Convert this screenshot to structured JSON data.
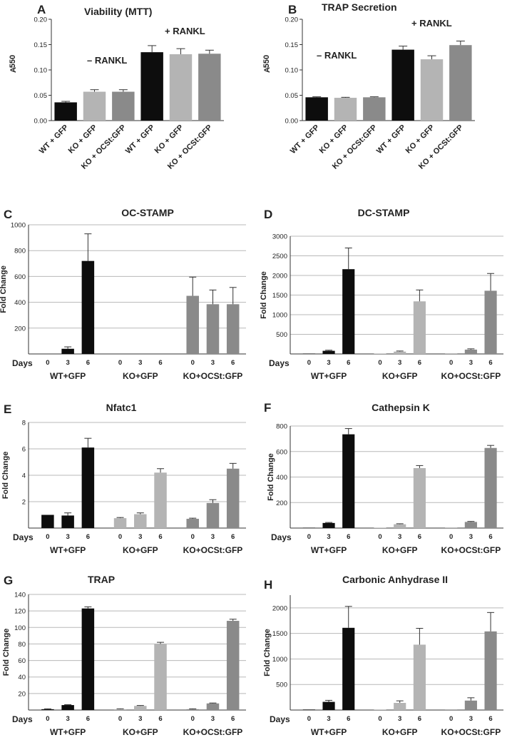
{
  "colors": {
    "wt": "#0d0d0d",
    "ko": "#b4b4b4",
    "ocst": "#8a8a8a"
  },
  "chart_data": [
    {
      "type": "bar",
      "panel": "A",
      "title": "Viability (MTT)",
      "ylabel_main": "A",
      "ylabel_sub": "550",
      "ylim": [
        0,
        0.2
      ],
      "yticks": [
        "0.00",
        "0.05",
        "0.10",
        "0.15",
        "0.20"
      ],
      "annotations": [
        "– RANKL",
        "+ RANKL"
      ],
      "categories": [
        "WT + GFP",
        "KO + GFP",
        "KO + OCSt:GFP",
        "WT + GFP",
        "KO + GFP",
        "KO + OCSt:GFP"
      ],
      "values": [
        0.036,
        0.057,
        0.057,
        0.135,
        0.131,
        0.132
      ],
      "errors": [
        0.002,
        0.004,
        0.004,
        0.013,
        0.011,
        0.007
      ]
    },
    {
      "type": "bar",
      "panel": "B",
      "title": "TRAP Secretion",
      "ylabel_main": "A",
      "ylabel_sub": "550",
      "ylim": [
        0,
        0.2
      ],
      "yticks": [
        "0.00",
        "0.05",
        "0.10",
        "0.15",
        "0.20"
      ],
      "annotations": [
        "– RANKL",
        "+ RANKL"
      ],
      "categories": [
        "WT + GFP",
        "KO + GFP",
        "KO + OCSt:GFP",
        "WT + GFP",
        "KO + GFP",
        "KO + OCSt:GFP"
      ],
      "values": [
        0.046,
        0.045,
        0.046,
        0.14,
        0.121,
        0.149
      ],
      "errors": [
        0.001,
        0.001,
        0.001,
        0.007,
        0.007,
        0.008
      ]
    },
    {
      "type": "bar",
      "panel": "C",
      "title": "OC-STAMP",
      "ylabel": "Fold Change",
      "ylim": [
        0,
        1000
      ],
      "yticks": [
        "200",
        "400",
        "600",
        "800",
        "1000"
      ],
      "days_label": "Days",
      "days": [
        "0",
        "3",
        "6"
      ],
      "groups": [
        "WT+GFP",
        "KO+GFP",
        "KO+OCSt:GFP"
      ],
      "series": [
        {
          "name": "WT+GFP",
          "values": [
            0,
            40,
            720
          ],
          "errors": [
            0,
            15,
            210
          ]
        },
        {
          "name": "KO+GFP",
          "values": [
            0,
            0,
            0
          ],
          "errors": [
            0,
            0,
            0
          ]
        },
        {
          "name": "KO+OCSt:GFP",
          "values": [
            450,
            385,
            385
          ],
          "errors": [
            145,
            110,
            130
          ]
        }
      ]
    },
    {
      "type": "bar",
      "panel": "D",
      "title": "DC-STAMP",
      "ylabel": "Fold Change",
      "ylim": [
        0,
        3000
      ],
      "yticks": [
        "500",
        "1000",
        "1500",
        "2000",
        "2500",
        "3000"
      ],
      "days_label": "Days",
      "days": [
        "0",
        "3",
        "6"
      ],
      "groups": [
        "WT+GFP",
        "KO+GFP",
        "KO+OCSt:GFP"
      ],
      "series": [
        {
          "name": "WT+GFP",
          "values": [
            10,
            80,
            2160
          ],
          "errors": [
            0,
            15,
            540
          ]
        },
        {
          "name": "KO+GFP",
          "values": [
            10,
            60,
            1340
          ],
          "errors": [
            0,
            15,
            290
          ]
        },
        {
          "name": "KO+OCSt:GFP",
          "values": [
            10,
            110,
            1610
          ],
          "errors": [
            0,
            20,
            440
          ]
        }
      ]
    },
    {
      "type": "bar",
      "panel": "E",
      "title": "Nfatc1",
      "ylabel": "Fold Change",
      "ylim": [
        0,
        8
      ],
      "yticks": [
        "2",
        "4",
        "6",
        "8"
      ],
      "days_label": "Days",
      "days": [
        "0",
        "3",
        "6"
      ],
      "groups": [
        "WT+GFP",
        "KO+GFP",
        "KO+OCSt:GFP"
      ],
      "series": [
        {
          "name": "WT+GFP",
          "values": [
            1.0,
            0.95,
            6.1
          ],
          "errors": [
            0,
            0.2,
            0.7
          ]
        },
        {
          "name": "KO+GFP",
          "values": [
            0.75,
            1.05,
            4.2
          ],
          "errors": [
            0.05,
            0.1,
            0.3
          ]
        },
        {
          "name": "KO+OCSt:GFP",
          "values": [
            0.7,
            1.9,
            4.5
          ],
          "errors": [
            0.05,
            0.25,
            0.4
          ]
        }
      ]
    },
    {
      "type": "bar",
      "panel": "F",
      "title": "Cathepsin K",
      "ylabel": "Fold Change",
      "ylim": [
        0,
        800
      ],
      "yticks": [
        "200",
        "400",
        "600",
        "800"
      ],
      "days_label": "Days",
      "days": [
        "0",
        "3",
        "6"
      ],
      "groups": [
        "WT+GFP",
        "KO+GFP",
        "KO+OCSt:GFP"
      ],
      "series": [
        {
          "name": "WT+GFP",
          "values": [
            3,
            40,
            735
          ],
          "errors": [
            0,
            4,
            45
          ]
        },
        {
          "name": "KO+GFP",
          "values": [
            3,
            30,
            470
          ],
          "errors": [
            0,
            4,
            20
          ]
        },
        {
          "name": "KO+OCSt:GFP",
          "values": [
            3,
            48,
            628
          ],
          "errors": [
            0,
            4,
            20
          ]
        }
      ]
    },
    {
      "type": "bar",
      "panel": "G",
      "title": "TRAP",
      "ylabel": "Fold Change",
      "ylim": [
        0,
        140
      ],
      "yticks": [
        "20",
        "40",
        "60",
        "80",
        "100",
        "120",
        "140"
      ],
      "days_label": "Days",
      "days": [
        "0",
        "3",
        "6"
      ],
      "groups": [
        "WT+GFP",
        "KO+GFP",
        "KO+OCSt:GFP"
      ],
      "series": [
        {
          "name": "WT+GFP",
          "values": [
            1,
            6,
            123
          ],
          "errors": [
            0.5,
            0.5,
            2
          ]
        },
        {
          "name": "KO+GFP",
          "values": [
            1,
            5,
            80
          ],
          "errors": [
            0.5,
            0.5,
            2
          ]
        },
        {
          "name": "KO+OCSt:GFP",
          "values": [
            1,
            8,
            108
          ],
          "errors": [
            0.5,
            0.5,
            2
          ]
        }
      ]
    },
    {
      "type": "bar",
      "panel": "H",
      "title": "Carbonic Anhydrase II",
      "ylabel": "Fold Change",
      "ylim": [
        0,
        2250
      ],
      "yticks": [
        "500",
        "1000",
        "1500",
        "2000"
      ],
      "days_label": "Days",
      "days": [
        "0",
        "3",
        "6"
      ],
      "groups": [
        "WT+GFP",
        "KO+GFP",
        "KO+OCSt:GFP"
      ],
      "series": [
        {
          "name": "WT+GFP",
          "values": [
            10,
            160,
            1610
          ],
          "errors": [
            0,
            30,
            420
          ]
        },
        {
          "name": "KO+GFP",
          "values": [
            10,
            140,
            1280
          ],
          "errors": [
            0,
            40,
            320
          ]
        },
        {
          "name": "KO+OCSt:GFP",
          "values": [
            10,
            185,
            1540
          ],
          "errors": [
            0,
            55,
            370
          ]
        }
      ]
    }
  ]
}
